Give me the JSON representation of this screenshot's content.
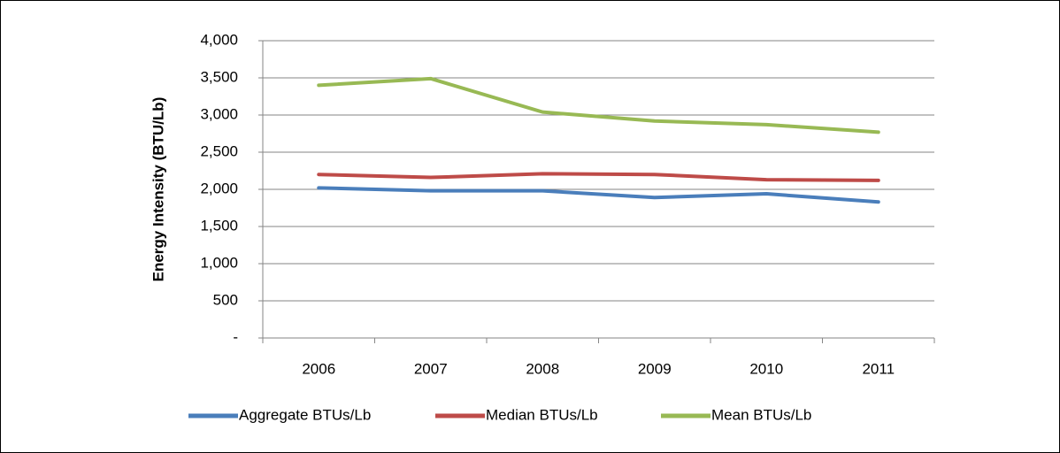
{
  "chart_data": {
    "type": "line",
    "y_label": "Energy Intensity  (BTU/Lb)",
    "categories": [
      "2006",
      "2007",
      "2008",
      "2009",
      "2010",
      "2011"
    ],
    "series": [
      {
        "name": "Aggregate BTUs/Lb",
        "color": "#4a7ebb",
        "values": [
          2020,
          1980,
          1980,
          1890,
          1940,
          1830
        ]
      },
      {
        "name": "Median BTUs/Lb",
        "color": "#be4b48",
        "values": [
          2200,
          2160,
          2210,
          2200,
          2130,
          2120
        ]
      },
      {
        "name": "Mean BTUs/Lb",
        "color": "#98b954",
        "values": [
          3400,
          3490,
          3040,
          2920,
          2870,
          2770
        ]
      }
    ],
    "ylim": [
      0,
      4000
    ],
    "yticks": [
      {
        "value": 0,
        "label": "-"
      },
      500,
      {
        "value": 1000,
        "label": "1,000"
      },
      {
        "value": 1500,
        "label": "1,500"
      },
      {
        "value": 2000,
        "label": "2,000"
      },
      {
        "value": 2500,
        "label": "2,500"
      },
      {
        "value": 3000,
        "label": "3,000"
      },
      {
        "value": 3500,
        "label": "3,500"
      },
      {
        "value": 4000,
        "label": "4,000"
      }
    ],
    "grid": true,
    "legend": "bottom"
  }
}
